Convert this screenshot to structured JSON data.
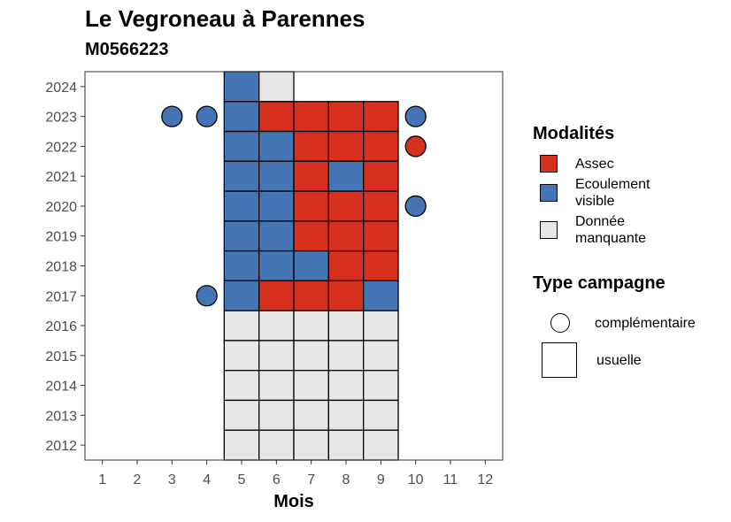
{
  "chart_data": {
    "type": "heatmap",
    "title": "Le Vegroneau à Parennes",
    "subtitle": "M0566223",
    "xlabel": "Mois",
    "ylabel": "",
    "x_ticks": [
      "1",
      "2",
      "3",
      "4",
      "5",
      "6",
      "7",
      "8",
      "9",
      "10",
      "11",
      "12"
    ],
    "y_ticks": [
      "2024",
      "2023",
      "2022",
      "2021",
      "2020",
      "2019",
      "2018",
      "2017",
      "2016",
      "2015",
      "2014",
      "2013",
      "2012"
    ],
    "xlim": [
      0.5,
      12.5
    ],
    "ylim": [
      2011.5,
      2024.5
    ],
    "grid": false,
    "legend_position": "right",
    "colors": {
      "Assec": "#d7301f",
      "Ecoulement visible": "#4575b4",
      "Donnée manquante": "#e6e6e6"
    },
    "legend_modalites": {
      "title": "Modalités",
      "items": [
        {
          "key": "Assec",
          "label": "Assec"
        },
        {
          "key": "Ecoulement visible",
          "label": "Ecoulement visible"
        },
        {
          "key": "Donnée manquante",
          "label": "Donnée manquante"
        }
      ]
    },
    "legend_campagne": {
      "title": "Type campagne",
      "items": [
        {
          "shape": "circle",
          "label": "complémentaire"
        },
        {
          "shape": "square",
          "label": "usuelle"
        }
      ]
    },
    "usuelle": [
      {
        "year": 2024,
        "month": 5,
        "value": "Ecoulement visible"
      },
      {
        "year": 2024,
        "month": 6,
        "value": "Donnée manquante"
      },
      {
        "year": 2023,
        "month": 5,
        "value": "Ecoulement visible"
      },
      {
        "year": 2023,
        "month": 6,
        "value": "Assec"
      },
      {
        "year": 2023,
        "month": 7,
        "value": "Assec"
      },
      {
        "year": 2023,
        "month": 8,
        "value": "Assec"
      },
      {
        "year": 2023,
        "month": 9,
        "value": "Assec"
      },
      {
        "year": 2022,
        "month": 5,
        "value": "Ecoulement visible"
      },
      {
        "year": 2022,
        "month": 6,
        "value": "Ecoulement visible"
      },
      {
        "year": 2022,
        "month": 7,
        "value": "Assec"
      },
      {
        "year": 2022,
        "month": 8,
        "value": "Assec"
      },
      {
        "year": 2022,
        "month": 9,
        "value": "Assec"
      },
      {
        "year": 2021,
        "month": 5,
        "value": "Ecoulement visible"
      },
      {
        "year": 2021,
        "month": 6,
        "value": "Ecoulement visible"
      },
      {
        "year": 2021,
        "month": 7,
        "value": "Assec"
      },
      {
        "year": 2021,
        "month": 8,
        "value": "Ecoulement visible"
      },
      {
        "year": 2021,
        "month": 9,
        "value": "Assec"
      },
      {
        "year": 2020,
        "month": 5,
        "value": "Ecoulement visible"
      },
      {
        "year": 2020,
        "month": 6,
        "value": "Ecoulement visible"
      },
      {
        "year": 2020,
        "month": 7,
        "value": "Assec"
      },
      {
        "year": 2020,
        "month": 8,
        "value": "Assec"
      },
      {
        "year": 2020,
        "month": 9,
        "value": "Assec"
      },
      {
        "year": 2019,
        "month": 5,
        "value": "Ecoulement visible"
      },
      {
        "year": 2019,
        "month": 6,
        "value": "Ecoulement visible"
      },
      {
        "year": 2019,
        "month": 7,
        "value": "Assec"
      },
      {
        "year": 2019,
        "month": 8,
        "value": "Assec"
      },
      {
        "year": 2019,
        "month": 9,
        "value": "Assec"
      },
      {
        "year": 2018,
        "month": 5,
        "value": "Ecoulement visible"
      },
      {
        "year": 2018,
        "month": 6,
        "value": "Ecoulement visible"
      },
      {
        "year": 2018,
        "month": 7,
        "value": "Ecoulement visible"
      },
      {
        "year": 2018,
        "month": 8,
        "value": "Assec"
      },
      {
        "year": 2018,
        "month": 9,
        "value": "Assec"
      },
      {
        "year": 2017,
        "month": 5,
        "value": "Ecoulement visible"
      },
      {
        "year": 2017,
        "month": 6,
        "value": "Assec"
      },
      {
        "year": 2017,
        "month": 7,
        "value": "Assec"
      },
      {
        "year": 2017,
        "month": 8,
        "value": "Assec"
      },
      {
        "year": 2017,
        "month": 9,
        "value": "Ecoulement visible"
      },
      {
        "year": 2016,
        "month": 5,
        "value": "Donnée manquante"
      },
      {
        "year": 2016,
        "month": 6,
        "value": "Donnée manquante"
      },
      {
        "year": 2016,
        "month": 7,
        "value": "Donnée manquante"
      },
      {
        "year": 2016,
        "month": 8,
        "value": "Donnée manquante"
      },
      {
        "year": 2016,
        "month": 9,
        "value": "Donnée manquante"
      },
      {
        "year": 2015,
        "month": 5,
        "value": "Donnée manquante"
      },
      {
        "year": 2015,
        "month": 6,
        "value": "Donnée manquante"
      },
      {
        "year": 2015,
        "month": 7,
        "value": "Donnée manquante"
      },
      {
        "year": 2015,
        "month": 8,
        "value": "Donnée manquante"
      },
      {
        "year": 2015,
        "month": 9,
        "value": "Donnée manquante"
      },
      {
        "year": 2014,
        "month": 5,
        "value": "Donnée manquante"
      },
      {
        "year": 2014,
        "month": 6,
        "value": "Donnée manquante"
      },
      {
        "year": 2014,
        "month": 7,
        "value": "Donnée manquante"
      },
      {
        "year": 2014,
        "month": 8,
        "value": "Donnée manquante"
      },
      {
        "year": 2014,
        "month": 9,
        "value": "Donnée manquante"
      },
      {
        "year": 2013,
        "month": 5,
        "value": "Donnée manquante"
      },
      {
        "year": 2013,
        "month": 6,
        "value": "Donnée manquante"
      },
      {
        "year": 2013,
        "month": 7,
        "value": "Donnée manquante"
      },
      {
        "year": 2013,
        "month": 8,
        "value": "Donnée manquante"
      },
      {
        "year": 2013,
        "month": 9,
        "value": "Donnée manquante"
      },
      {
        "year": 2012,
        "month": 5,
        "value": "Donnée manquante"
      },
      {
        "year": 2012,
        "month": 6,
        "value": "Donnée manquante"
      },
      {
        "year": 2012,
        "month": 7,
        "value": "Donnée manquante"
      },
      {
        "year": 2012,
        "month": 8,
        "value": "Donnée manquante"
      },
      {
        "year": 2012,
        "month": 9,
        "value": "Donnée manquante"
      }
    ],
    "complementaire": [
      {
        "year": 2023,
        "month": 3,
        "value": "Ecoulement visible"
      },
      {
        "year": 2023,
        "month": 4,
        "value": "Ecoulement visible"
      },
      {
        "year": 2023,
        "month": 10,
        "value": "Ecoulement visible"
      },
      {
        "year": 2022,
        "month": 10,
        "value": "Assec"
      },
      {
        "year": 2020,
        "month": 10,
        "value": "Ecoulement visible"
      },
      {
        "year": 2017,
        "month": 4,
        "value": "Ecoulement visible"
      }
    ]
  }
}
